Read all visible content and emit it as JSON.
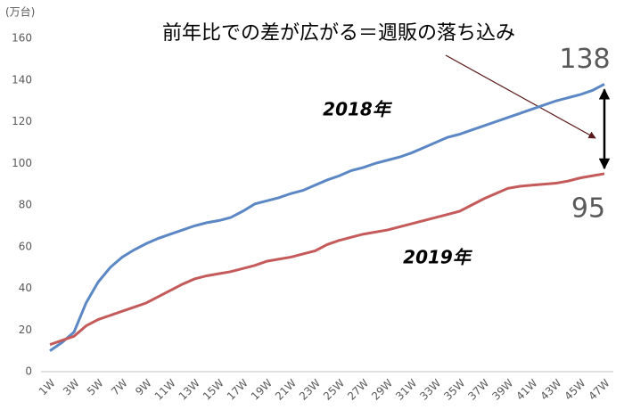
{
  "chart_data": {
    "type": "line",
    "y_label": "(万台)",
    "annotation": "前年比での差が広がる＝週販の落ち込み",
    "categories": [
      "1W",
      null,
      "3W",
      null,
      "5W",
      null,
      "7W",
      null,
      "9W",
      null,
      "11W",
      null,
      "13W",
      null,
      "15W",
      null,
      "17W",
      null,
      "19W",
      null,
      "21W",
      null,
      "23W",
      null,
      "25W",
      null,
      "27W",
      null,
      "29W",
      null,
      "31W",
      null,
      "33W",
      null,
      "35W",
      null,
      "37W",
      null,
      "39W",
      null,
      "41W",
      null,
      "43W",
      null,
      "45W",
      null,
      "47W"
    ],
    "series": [
      {
        "name": "2018年",
        "color": "#5b87c5",
        "values": [
          10,
          14,
          19,
          33,
          43,
          50,
          55,
          58.5,
          61.5,
          64,
          66,
          68,
          70,
          71.5,
          72.5,
          74,
          77,
          80.5,
          82,
          83.5,
          85.5,
          87,
          89.5,
          92,
          94,
          96.5,
          98,
          100,
          101.5,
          103,
          105,
          107.5,
          110,
          112.5,
          114,
          116,
          118,
          120,
          122,
          124,
          126,
          128,
          130,
          131.5,
          133,
          135,
          138
        ]
      },
      {
        "name": "2019年",
        "color": "#c55a5a",
        "values": [
          13,
          15,
          17,
          22,
          25,
          27,
          29,
          31,
          33,
          36,
          39,
          42,
          44.5,
          46,
          47,
          48,
          49.5,
          51,
          53,
          54,
          55,
          56.5,
          58,
          61,
          63,
          64.5,
          66,
          67,
          68,
          69.5,
          71,
          72.5,
          74,
          75.5,
          77,
          80,
          83,
          85.5,
          88,
          89,
          89.5,
          90,
          90.5,
          91.5,
          93,
          94,
          95
        ]
      }
    ],
    "ylim": [
      0,
      160
    ],
    "yticks": [
      0,
      20,
      40,
      60,
      80,
      100,
      120,
      140,
      160
    ],
    "grid": false
  }
}
